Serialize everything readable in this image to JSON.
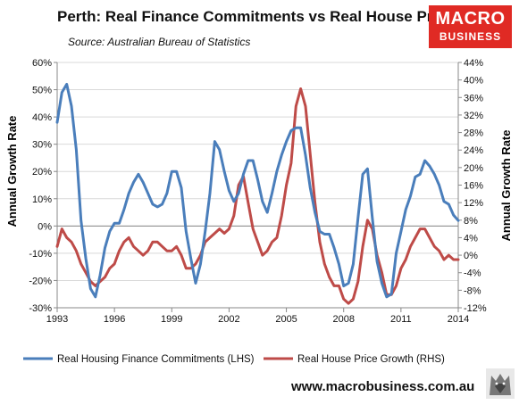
{
  "header": {
    "title": "Perth: Real Finance Commitments vs Real House Prices",
    "subtitle": "Source: Australian Bureau of Statistics"
  },
  "logo": {
    "line1": "MACRO",
    "line2": "BUSINESS",
    "color": "#e02a24"
  },
  "footer": {
    "url": "www.macrobusiness.com.au"
  },
  "chart_data": {
    "type": "line",
    "x_range": [
      1993,
      2014
    ],
    "x_ticks": [
      "1993",
      "1996",
      "1999",
      "2002",
      "2005",
      "2008",
      "2011",
      "2014"
    ],
    "ylabel_left": "Annual Growth Rate",
    "ylabel_right": "Annual Growth Rate",
    "ylim_left": [
      -30,
      60
    ],
    "ylim_right": [
      -12,
      44
    ],
    "y_ticks_left": [
      "-30%",
      "-20%",
      "-10%",
      "0%",
      "10%",
      "20%",
      "30%",
      "40%",
      "50%",
      "60%"
    ],
    "y_ticks_right": [
      "-12%",
      "-8%",
      "-4%",
      "0%",
      "4%",
      "8%",
      "12%",
      "16%",
      "20%",
      "24%",
      "28%",
      "32%",
      "36%",
      "40%",
      "44%"
    ],
    "grid": true,
    "legend_position": "bottom",
    "series": [
      {
        "name": "Real Housing Finance Commitments (LHS)",
        "axis": "left",
        "color": "#4a7ebb",
        "x": [
          1993,
          1993.25,
          1993.5,
          1993.75,
          1994,
          1994.25,
          1994.5,
          1994.75,
          1995,
          1995.25,
          1995.5,
          1995.75,
          1996,
          1996.25,
          1996.5,
          1996.75,
          1997,
          1997.25,
          1997.5,
          1997.75,
          1998,
          1998.25,
          1998.5,
          1998.75,
          1999,
          1999.25,
          1999.5,
          1999.75,
          2000,
          2000.25,
          2000.5,
          2000.75,
          2001,
          2001.25,
          2001.5,
          2001.75,
          2002,
          2002.25,
          2002.5,
          2002.75,
          2003,
          2003.25,
          2003.5,
          2003.75,
          2004,
          2004.25,
          2004.5,
          2004.75,
          2005,
          2005.25,
          2005.5,
          2005.75,
          2006,
          2006.25,
          2006.5,
          2006.75,
          2007,
          2007.25,
          2007.5,
          2007.75,
          2008,
          2008.25,
          2008.5,
          2008.75,
          2009,
          2009.25,
          2009.5,
          2009.75,
          2010,
          2010.25,
          2010.5,
          2010.75,
          2011,
          2011.25,
          2011.5,
          2011.75,
          2012,
          2012.25,
          2012.5,
          2012.75,
          2013,
          2013.25,
          2013.5,
          2013.75,
          2014
        ],
        "values": [
          38,
          49,
          52,
          44,
          28,
          2,
          -12,
          -23,
          -26,
          -18,
          -8,
          -2,
          1,
          1,
          6,
          12,
          16,
          19,
          16,
          12,
          8,
          7,
          8,
          12,
          20,
          20,
          14,
          -2,
          -12,
          -21,
          -14,
          -2,
          12,
          31,
          28,
          20,
          13,
          9,
          12,
          19,
          24,
          24,
          17,
          9,
          5,
          12,
          20,
          26,
          31,
          35,
          36,
          36,
          26,
          14,
          5,
          -2,
          -3,
          -3,
          -8,
          -14,
          -22,
          -21,
          -14,
          3,
          19,
          21,
          3,
          -13,
          -21,
          -26,
          -25,
          -10,
          -2,
          6,
          11,
          18,
          19,
          24,
          22,
          19,
          15,
          9,
          8,
          4,
          2
        ]
      },
      {
        "name": "Real House Price Growth (RHS)",
        "axis": "right",
        "color": "#be4b48",
        "x": [
          1993,
          1993.25,
          1993.5,
          1993.75,
          1994,
          1994.25,
          1994.5,
          1994.75,
          1995,
          1995.25,
          1995.5,
          1995.75,
          1996,
          1996.25,
          1996.5,
          1996.75,
          1997,
          1997.25,
          1997.5,
          1997.75,
          1998,
          1998.25,
          1998.5,
          1998.75,
          1999,
          1999.25,
          1999.5,
          1999.75,
          2000,
          2000.25,
          2000.5,
          2000.75,
          2001,
          2001.25,
          2001.5,
          2001.75,
          2002,
          2002.25,
          2002.5,
          2002.75,
          2003,
          2003.25,
          2003.5,
          2003.75,
          2004,
          2004.25,
          2004.5,
          2004.75,
          2005,
          2005.25,
          2005.5,
          2005.75,
          2006,
          2006.25,
          2006.5,
          2006.75,
          2007,
          2007.25,
          2007.5,
          2007.75,
          2008,
          2008.25,
          2008.5,
          2008.75,
          2009,
          2009.25,
          2009.5,
          2009.75,
          2010,
          2010.25,
          2010.5,
          2010.75,
          2011,
          2011.25,
          2011.5,
          2011.75,
          2012,
          2012.25,
          2012.5,
          2012.75,
          2013,
          2013.25,
          2013.5,
          2013.75,
          2014
        ],
        "values": [
          2,
          6,
          4,
          3,
          1,
          -2,
          -4,
          -6,
          -7,
          -6,
          -5,
          -3,
          -2,
          1,
          3,
          4,
          2,
          1,
          0,
          1,
          3,
          3,
          2,
          1,
          1,
          2,
          0,
          -3,
          -3,
          -2,
          0,
          3,
          4,
          5,
          6,
          5,
          6,
          9,
          16,
          18,
          12,
          6,
          3,
          0,
          1,
          3,
          4,
          9,
          16,
          21,
          34,
          38,
          34,
          23,
          12,
          3,
          -2,
          -5,
          -7,
          -7,
          -10,
          -11,
          -10,
          -6,
          2,
          8,
          6,
          0,
          -4,
          -9,
          -9,
          -7,
          -3,
          -1,
          2,
          4,
          6,
          6,
          4,
          2,
          1,
          -1,
          0,
          -1,
          -1
        ]
      }
    ]
  }
}
